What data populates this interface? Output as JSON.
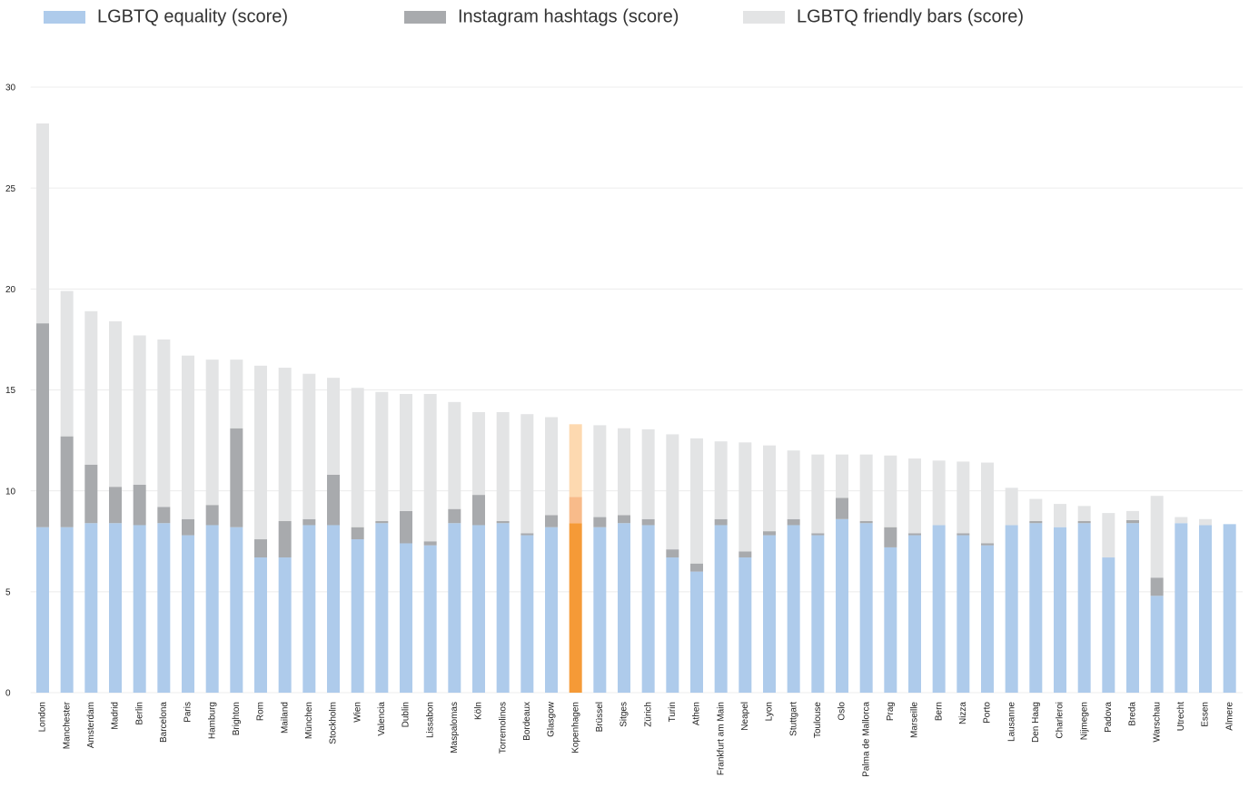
{
  "chart_data": {
    "type": "stacked_bar",
    "categories": [
      "London",
      "Manchester",
      "Amsterdam",
      "Madrid",
      "Berlin",
      "Barcelona",
      "Paris",
      "Hamburg",
      "Brighton",
      "Rom",
      "Mailand",
      "München",
      "Stockholm",
      "Wien",
      "Valencia",
      "Dublin",
      "Lissabon",
      "Maspalomas",
      "Köln",
      "Torremolinos",
      "Bordeaux",
      "Glasgow",
      "Kopenhagen",
      "Brüssel",
      "Sitges",
      "Zürich",
      "Turin",
      "Athen",
      "Frankfurt am Main",
      "Neapel",
      "Lyon",
      "Stuttgart",
      "Toulouse",
      "Oslo",
      "Palma de Mallorca",
      "Prag",
      "Marseille",
      "Bern",
      "Nizza",
      "Porto",
      "Lausanne",
      "Den Haag",
      "Charleroi",
      "Nijmegen",
      "Padova",
      "Breda",
      "Warschau",
      "Utrecht",
      "Essen",
      "Almere"
    ],
    "series": [
      {
        "name": "LGBTQ equality (score)",
        "color": "#aecbeb",
        "highlight_color": "#f59a37",
        "values": [
          8.2,
          8.2,
          8.4,
          8.4,
          8.3,
          8.4,
          7.8,
          8.3,
          8.2,
          6.7,
          6.7,
          8.3,
          8.3,
          7.6,
          8.4,
          7.4,
          7.3,
          8.4,
          8.3,
          8.4,
          7.8,
          8.2,
          8.4,
          8.2,
          8.4,
          8.3,
          6.7,
          6.0,
          8.3,
          6.7,
          7.8,
          8.3,
          7.8,
          8.6,
          8.4,
          7.2,
          7.8,
          8.3,
          7.8,
          7.3,
          8.3,
          8.4,
          8.2,
          8.4,
          6.7,
          8.4,
          4.8,
          8.4,
          8.3,
          8.35
        ]
      },
      {
        "name": "Instagram hashtags (score)",
        "color": "#a8aaad",
        "highlight_color": "#f8bb8a",
        "values": [
          10.1,
          4.5,
          2.9,
          1.8,
          2.0,
          0.8,
          0.8,
          1.0,
          4.9,
          0.9,
          1.8,
          0.3,
          2.5,
          0.6,
          0.1,
          1.6,
          0.2,
          0.7,
          1.5,
          0.1,
          0.1,
          0.6,
          1.3,
          0.5,
          0.4,
          0.3,
          0.4,
          0.4,
          0.3,
          0.3,
          0.2,
          0.3,
          0.1,
          1.05,
          0.1,
          1.0,
          0.1,
          0,
          0.1,
          0.1,
          0,
          0.1,
          0,
          0.1,
          0,
          0.15,
          0.9,
          0,
          0,
          0
        ]
      },
      {
        "name": "LGBTQ friendly bars (score)",
        "color": "#e3e4e5",
        "highlight_color": "#fdd9b0",
        "values": [
          9.9,
          7.2,
          7.6,
          8.2,
          7.4,
          8.3,
          8.1,
          7.2,
          3.4,
          8.6,
          7.6,
          7.2,
          4.8,
          6.9,
          6.4,
          5.8,
          7.3,
          5.3,
          4.1,
          5.4,
          5.9,
          4.85,
          3.6,
          4.55,
          4.3,
          4.45,
          5.7,
          6.2,
          3.85,
          5.4,
          4.25,
          3.4,
          3.9,
          2.15,
          3.3,
          3.55,
          3.7,
          3.2,
          3.55,
          4.0,
          1.85,
          1.1,
          1.15,
          0.75,
          2.2,
          0.45,
          4.05,
          0.3,
          0.3,
          0
        ]
      }
    ],
    "highlight": "Kopenhagen",
    "ylim": [
      0,
      30
    ],
    "yticks": [
      0,
      5,
      10,
      15,
      20,
      25,
      30
    ],
    "grid": true
  }
}
